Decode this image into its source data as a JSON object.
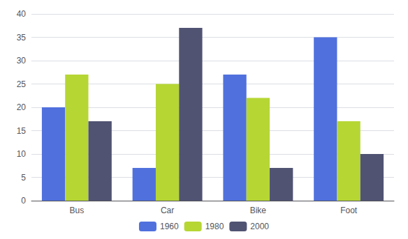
{
  "chart_data": {
    "type": "bar",
    "categories": [
      "Bus",
      "Car",
      "Bike",
      "Foot"
    ],
    "series": [
      {
        "name": "1960",
        "values": [
          20,
          7,
          27,
          35
        ]
      },
      {
        "name": "1980",
        "values": [
          27,
          25,
          22,
          17
        ]
      },
      {
        "name": "2000",
        "values": [
          17,
          37,
          7,
          10
        ]
      }
    ],
    "ylim": [
      0,
      40
    ],
    "yticks": [
      0,
      5,
      10,
      15,
      20,
      25,
      30,
      35,
      40
    ],
    "grid": true,
    "legend": "bottom"
  }
}
